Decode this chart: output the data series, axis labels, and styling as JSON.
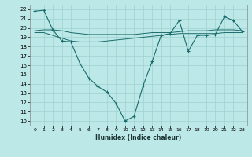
{
  "title": "",
  "xlabel": "Humidex (Indice chaleur)",
  "ylabel": "",
  "xlim": [
    -0.5,
    23.5
  ],
  "ylim": [
    9.5,
    22.5
  ],
  "yticks": [
    10,
    11,
    12,
    13,
    14,
    15,
    16,
    17,
    18,
    19,
    20,
    21,
    22
  ],
  "xticks": [
    0,
    1,
    2,
    3,
    4,
    5,
    6,
    7,
    8,
    9,
    10,
    11,
    12,
    13,
    14,
    15,
    16,
    17,
    18,
    19,
    20,
    21,
    22,
    23
  ],
  "background_color": "#bde8e8",
  "grid_color": "#a0d0d0",
  "line_color": "#1a6b6b",
  "main_line": {
    "x": [
      0,
      1,
      2,
      3,
      4,
      5,
      6,
      7,
      8,
      9,
      10,
      11,
      12,
      13,
      14,
      15,
      16,
      17,
      18,
      19,
      20,
      21,
      22,
      23
    ],
    "y": [
      21.8,
      21.9,
      19.8,
      18.6,
      18.5,
      16.2,
      14.6,
      13.7,
      13.1,
      11.9,
      10.0,
      10.5,
      13.8,
      16.4,
      19.2,
      19.4,
      20.8,
      17.5,
      19.2,
      19.2,
      19.3,
      21.2,
      20.8,
      19.6
    ]
  },
  "smooth_line1": {
    "x": [
      0,
      1,
      2,
      3,
      4,
      5,
      6,
      7,
      8,
      9,
      10,
      11,
      12,
      13,
      14,
      15,
      16,
      17,
      18,
      19,
      20,
      21,
      22,
      23
    ],
    "y": [
      19.7,
      19.8,
      19.8,
      19.7,
      19.5,
      19.4,
      19.3,
      19.3,
      19.3,
      19.3,
      19.3,
      19.3,
      19.4,
      19.5,
      19.5,
      19.5,
      19.6,
      19.7,
      19.7,
      19.7,
      19.8,
      19.8,
      19.8,
      19.7
    ]
  },
  "smooth_line2": {
    "x": [
      0,
      1,
      2,
      3,
      4,
      5,
      6,
      7,
      8,
      9,
      10,
      11,
      12,
      13,
      14,
      15,
      16,
      17,
      18,
      19,
      20,
      21,
      22,
      23
    ],
    "y": [
      19.5,
      19.5,
      19.2,
      18.9,
      18.6,
      18.5,
      18.5,
      18.5,
      18.6,
      18.7,
      18.8,
      18.9,
      19.0,
      19.1,
      19.2,
      19.3,
      19.4,
      19.4,
      19.4,
      19.4,
      19.4,
      19.5,
      19.5,
      19.5
    ]
  }
}
